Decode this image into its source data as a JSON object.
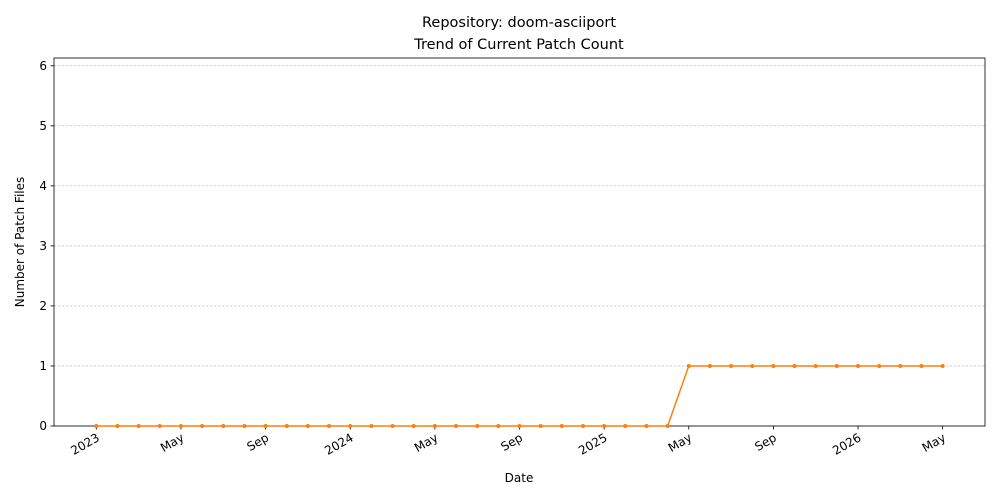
{
  "chart_data": {
    "type": "line",
    "title": "Repository: doom-asciiport",
    "subtitle": "Trend of Current Patch Count",
    "xlabel": "Date",
    "ylabel": "Number of Patch Files",
    "x": [
      "2023-01",
      "2023-02",
      "2023-03",
      "2023-04",
      "2023-05",
      "2023-06",
      "2023-07",
      "2023-08",
      "2023-09",
      "2023-10",
      "2023-11",
      "2023-12",
      "2024-01",
      "2024-02",
      "2024-03",
      "2024-04",
      "2024-05",
      "2024-06",
      "2024-07",
      "2024-08",
      "2024-09",
      "2024-10",
      "2024-11",
      "2024-12",
      "2025-01",
      "2025-02",
      "2025-03",
      "2025-04",
      "2025-05",
      "2025-06",
      "2025-07",
      "2025-08",
      "2025-09",
      "2025-10",
      "2025-11",
      "2025-12",
      "2026-01",
      "2026-02",
      "2026-03",
      "2026-04",
      "2026-05"
    ],
    "values": [
      0,
      0,
      0,
      0,
      0,
      0,
      0,
      0,
      0,
      0,
      0,
      0,
      0,
      0,
      0,
      0,
      0,
      0,
      0,
      0,
      0,
      0,
      0,
      0,
      0,
      0,
      0,
      0,
      1,
      1,
      1,
      1,
      1,
      1,
      1,
      1,
      1,
      1,
      1,
      1,
      1
    ],
    "color": "#ff7f0e",
    "xlim": [
      "2022-11",
      "2026-07"
    ],
    "xticks": [
      {
        "value": "2023-01",
        "label": "2023"
      },
      {
        "value": "2023-05",
        "label": "May"
      },
      {
        "value": "2023-09",
        "label": "Sep"
      },
      {
        "value": "2024-01",
        "label": "2024"
      },
      {
        "value": "2024-05",
        "label": "May"
      },
      {
        "value": "2024-09",
        "label": "Sep"
      },
      {
        "value": "2025-01",
        "label": "2025"
      },
      {
        "value": "2025-05",
        "label": "May"
      },
      {
        "value": "2025-09",
        "label": "Sep"
      },
      {
        "value": "2026-01",
        "label": "2026"
      },
      {
        "value": "2026-05",
        "label": "May"
      }
    ],
    "ylim": [
      0,
      6.13
    ],
    "yticks": [
      0,
      1,
      2,
      3,
      4,
      5,
      6
    ],
    "grid": "y"
  }
}
